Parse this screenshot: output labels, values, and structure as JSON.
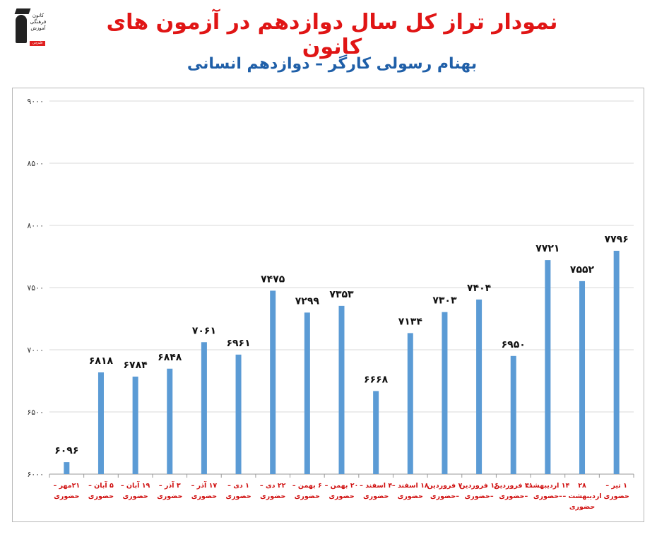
{
  "header": {
    "title": "نمودار تراز کل سال دوازدهم در آزمون های کانون",
    "subtitle": "بهنام رسولی کارگر – دوازدهم انسانی",
    "logo_text": "کانون فرهنگی آموزش",
    "logo_badge": "قلم‌چی"
  },
  "colors": {
    "title": "#e01515",
    "subtitle": "#1f5fa8",
    "bar": "#5b9bd5",
    "x_labels": "#d01010"
  },
  "chart_data": {
    "type": "bar",
    "title": "نمودار تراز کل سال دوازدهم در آزمون های کانون",
    "subtitle": "بهنام رسولی کارگر – دوازدهم انسانی",
    "xlabel": "",
    "ylabel": "",
    "ylim": [
      6000,
      9000
    ],
    "yticks": [
      6000,
      6500,
      7000,
      7500,
      8000,
      8500,
      9000
    ],
    "ytick_labels": [
      "۶۰۰۰",
      "۶۵۰۰",
      "۷۰۰۰",
      "۷۵۰۰",
      "۸۰۰۰",
      "۸۵۰۰",
      "۹۰۰۰"
    ],
    "grid": true,
    "legend": "none",
    "categories": [
      [
        "۲۱مهر –",
        "حضوری"
      ],
      [
        "۵ آبان –",
        "حضوری"
      ],
      [
        "۱۹ آبان –",
        "حضوری"
      ],
      [
        "۳ آذر –",
        "حضوری"
      ],
      [
        "۱۷ آذر –",
        "حضوری"
      ],
      [
        "۱ دی –",
        "حضوری"
      ],
      [
        "۲۲ دی –",
        "حضوری"
      ],
      [
        "۶ بهمن –",
        "حضوری"
      ],
      [
        "۲۰ بهمن –",
        "حضوری"
      ],
      [
        "۴ اسفند –",
        "حضوری"
      ],
      [
        "۱۸ اسفند –",
        "حضوری"
      ],
      [
        "۷ فروردین",
        "–حضوری"
      ],
      [
        "۱۶ فروردین",
        "–حضوری"
      ],
      [
        "۳۱ فروردین",
        "–حضوری"
      ],
      [
        "۱۴ اردیبهشت",
        "–حضوری"
      ],
      [
        "۲۸",
        "اردیبهشت –",
        "حضوری"
      ],
      [
        "۱ تیر –",
        "حضوری"
      ]
    ],
    "values": [
      6096,
      6818,
      6784,
      6848,
      7061,
      6961,
      7475,
      7299,
      7353,
      6668,
      7134,
      7303,
      7404,
      6950,
      7721,
      7552,
      7796
    ],
    "value_labels": [
      "۶۰۹۶",
      "۶۸۱۸",
      "۶۷۸۴",
      "۶۸۴۸",
      "۷۰۶۱",
      "۶۹۶۱",
      "۷۴۷۵",
      "۷۲۹۹",
      "۷۳۵۳",
      "۶۶۶۸",
      "۷۱۳۴",
      "۷۳۰۳",
      "۷۴۰۴",
      "۶۹۵۰",
      "۷۷۲۱",
      "۷۵۵۲",
      "۷۷۹۶"
    ]
  }
}
